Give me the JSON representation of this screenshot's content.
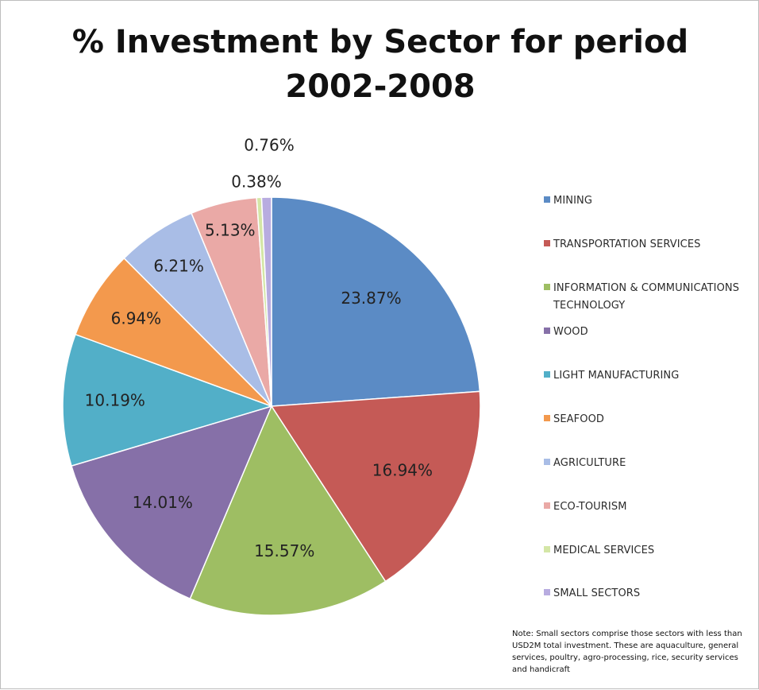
{
  "chart_data": {
    "type": "pie",
    "title": "% Investment by Sector for period 2002-2008",
    "title_lines": [
      "% Investment by Sector for period",
      "2002-2008"
    ],
    "legend_position": "right",
    "slices": [
      {
        "name": "MINING",
        "value": 23.87,
        "label": "23.87%",
        "color": "#5b8bc5"
      },
      {
        "name": "TRANSPORTATION SERVICES",
        "value": 16.94,
        "label": "16.94%",
        "color": "#c55a56"
      },
      {
        "name": "INFORMATION & COMMUNICATIONS TECHNOLOGY",
        "value": 15.57,
        "label": "15.57%",
        "color": "#9ebe63"
      },
      {
        "name": "WOOD",
        "value": 14.01,
        "label": "14.01%",
        "color": "#8670a8"
      },
      {
        "name": "LIGHT MANUFACTURING",
        "value": 10.19,
        "label": "10.19%",
        "color": "#52afc8"
      },
      {
        "name": "SEAFOOD",
        "value": 6.94,
        "label": "6.94%",
        "color": "#f3994d"
      },
      {
        "name": "AGRICULTURE",
        "value": 6.21,
        "label": "6.21%",
        "color": "#a9bde6"
      },
      {
        "name": "ECO-TOURISM",
        "value": 5.13,
        "label": "5.13%",
        "color": "#eaa9a6"
      },
      {
        "name": "MEDICAL SERVICES",
        "value": 0.38,
        "label": "0.38%",
        "color": "#d4e6a6"
      },
      {
        "name": "SMALL SECTORS",
        "value": 0.76,
        "label": "0.76%",
        "color": "#b8ace0"
      }
    ],
    "note": "Note: Small sectors comprise those sectors with less than USD2M total investment. These are aquaculture, general services, poultry, agro-processing, rice, security services and handicraft"
  }
}
